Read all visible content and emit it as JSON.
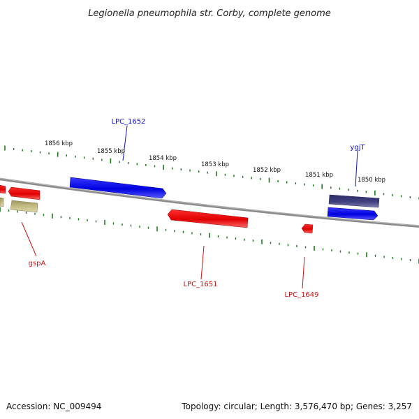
{
  "title": "Legionella pneumophila str. Corby, complete genome",
  "footer": {
    "accession": "Accession: NC_009494",
    "summary": "Topology: circular; Length: 3,576,470 bp; Genes: 3,257"
  },
  "ruler": {
    "labels": [
      "1856 kbp",
      "1855 kbp",
      "1854 kbp",
      "1853 kbp",
      "1852 kbp",
      "1851 kbp",
      "1850 kbp"
    ]
  },
  "genes": {
    "LPC_1652": "LPC_1652",
    "ygjT": "ygjT",
    "gspA": "gspA",
    "LPC_1651": "LPC_1651",
    "LPC_1649": "LPC_1649"
  },
  "colors": {
    "ruler_tick": "#1a7a1a",
    "backbone": "#8c8c8c",
    "forward_gene": "#1010e8",
    "reverse_gene": "#e81010",
    "pseudo_gene": "#c8c088",
    "rna_gene": "#4a4a8a",
    "label_blue": "#1010c0",
    "label_red": "#d01010"
  }
}
